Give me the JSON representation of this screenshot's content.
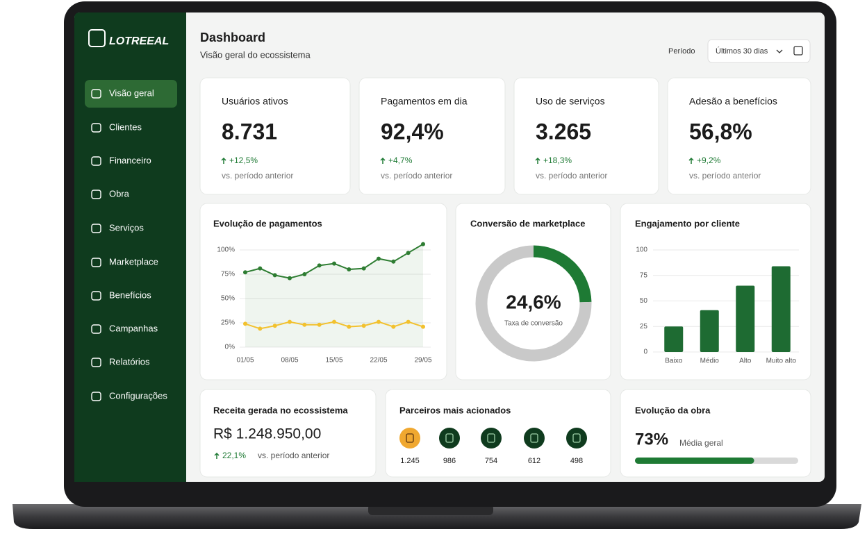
{
  "brand": "LOTREEAL",
  "nav": [
    "Visão geral",
    "Clientes",
    "Financeiro",
    "Obra",
    "Serviços",
    "Marketplace",
    "Benefícios",
    "Campanhas",
    "Relatórios",
    "Configurações"
  ],
  "header": {
    "title": "Dashboard",
    "subtitle": "Visão geral do ecossistema",
    "period_label": "Período",
    "period_value": "Últimos 30 dias"
  },
  "kpis": [
    {
      "label": "Usuários ativos",
      "value": "8.731",
      "change": "+12,5%",
      "note": "vs. período anterior"
    },
    {
      "label": "Pagamentos em dia",
      "value": "92,4%",
      "change": "+4,7%",
      "note": "vs. período anterior"
    },
    {
      "label": "Uso de serviços",
      "value": "3.265",
      "change": "+18,3%",
      "note": "vs. período anterior"
    },
    {
      "label": "Adesão a benefícios",
      "value": "56,8%",
      "change": "+9,2%",
      "note": "vs. período anterior"
    }
  ],
  "payments_chart": {
    "type": "line",
    "title": "Evolução de pagamentos",
    "categories": [
      "01/05",
      null,
      null,
      "08/05",
      null,
      null,
      "15/05",
      null,
      null,
      "22/05",
      null,
      null,
      "29/05"
    ],
    "series": [
      {
        "color": "#2e7d32",
        "values": [
          77,
          81,
          74,
          71,
          75,
          84,
          86,
          80,
          81,
          91,
          88,
          97,
          106
        ]
      },
      {
        "color": "#f2c12e",
        "values": [
          24,
          19,
          22,
          26,
          23,
          23,
          26,
          21,
          22,
          26,
          21,
          26,
          21
        ]
      }
    ],
    "ylim": [
      0,
      106
    ],
    "yticks": [
      {
        "value": 0,
        "label": "0%"
      },
      {
        "value": 25,
        "label": "25%"
      },
      {
        "value": 50,
        "label": "50%"
      },
      {
        "value": 75,
        "label": "75%"
      },
      {
        "value": 100,
        "label": "100%"
      }
    ],
    "grid": true
  },
  "conversion_chart": {
    "type": "pie",
    "title": "Conversão de marketplace",
    "values": [
      24.6,
      75.4
    ],
    "value_labels": [
      "24,6%",
      null
    ],
    "colors": [
      "#1e7a34",
      "#c9c9c9"
    ],
    "subtitle": "Taxa de conversão"
  },
  "engagement_chart": {
    "type": "bar",
    "title": "Engajamento por cliente",
    "categories": [
      "Baixo",
      "Médio",
      "Alto",
      "Muito alto"
    ],
    "values": [
      25,
      41,
      65,
      84
    ],
    "color": "#1e6b32",
    "ylim": [
      0,
      100
    ],
    "yticks": [
      0,
      25,
      50,
      75,
      100
    ],
    "grid": true
  },
  "revenue": {
    "title": "Receita gerada no ecossistema",
    "value": "R$ 1.248.950,00",
    "change": "22,1%",
    "note": "vs. período anterior"
  },
  "partners": {
    "title": "Parceiros mais acionados",
    "counts": [
      "1.245",
      "986",
      "754",
      "612",
      "498"
    ]
  },
  "progress": {
    "title": "Evolução da obra",
    "value": {
      "value": 73,
      "label": "73%"
    },
    "note": "Média geral",
    "xlim": [
      0,
      100
    ],
    "color": "#1e7a34"
  }
}
